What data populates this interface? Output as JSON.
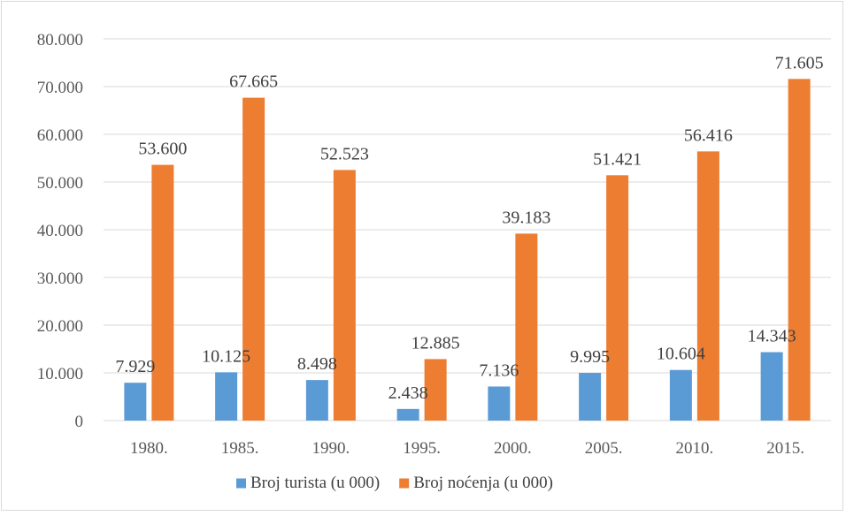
{
  "chart_data": {
    "type": "bar",
    "categories": [
      "1980.",
      "1985.",
      "1990.",
      "1995.",
      "2000.",
      "2005.",
      "2010.",
      "2015."
    ],
    "series": [
      {
        "name": "Broj turista (u 000)",
        "values": [
          7929,
          10125,
          8498,
          2438,
          7136,
          9995,
          10604,
          14343
        ],
        "labels": [
          "7.929",
          "10.125",
          "8.498",
          "2.438",
          "7.136",
          "9.995",
          "10.604",
          "14.343"
        ],
        "color": "#5b9bd5"
      },
      {
        "name": "Broj noćenja (u 000)",
        "values": [
          53600,
          67665,
          52523,
          12885,
          39183,
          51421,
          56416,
          71605
        ],
        "labels": [
          "53.600",
          "67.665",
          "52.523",
          "12.885",
          "39.183",
          "51.421",
          "56.416",
          "71.605"
        ],
        "color": "#ed7d31"
      }
    ],
    "ylim": [
      0,
      80000
    ],
    "yticks": [
      0,
      10000,
      20000,
      30000,
      40000,
      50000,
      60000,
      70000,
      80000
    ],
    "ytick_labels": [
      "0",
      "10.000",
      "20.000",
      "30.000",
      "40.000",
      "50.000",
      "60.000",
      "70.000",
      "80.000"
    ],
    "grid": true,
    "legend_position": "bottom",
    "gridline_color": "#d9d9d9"
  }
}
